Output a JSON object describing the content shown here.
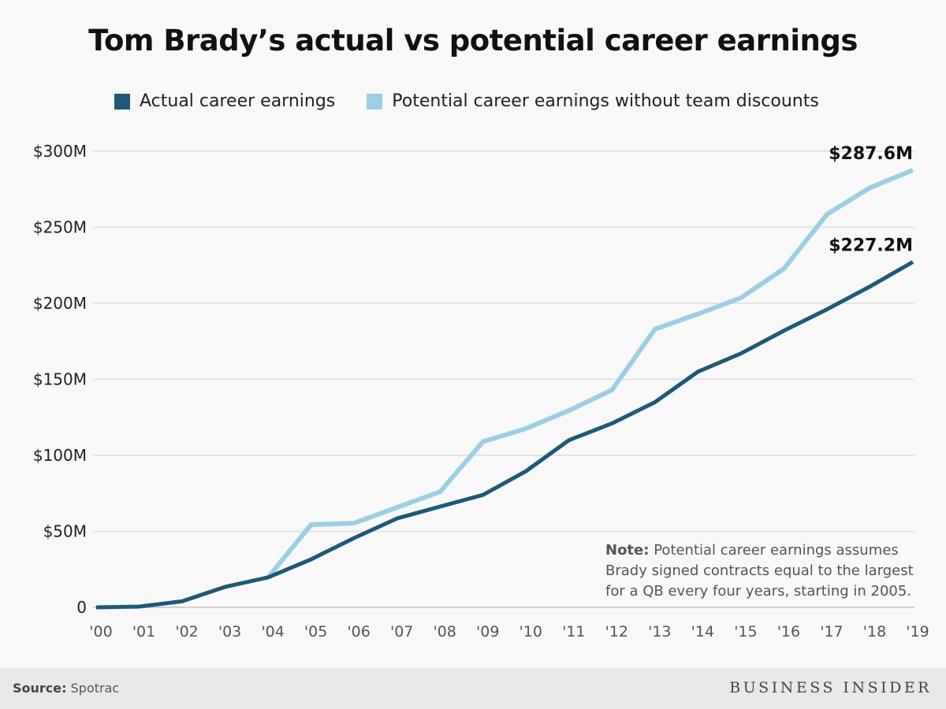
{
  "chart_data": {
    "type": "line",
    "title": "Tom Brady’s actual vs potential career earnings",
    "categories": [
      "'00",
      "'01",
      "'02",
      "'03",
      "'04",
      "'05",
      "'06",
      "'07",
      "'08",
      "'09",
      "'10",
      "'11",
      "'12",
      "'13",
      "'14",
      "'15",
      "'16",
      "'17",
      "'18",
      "'19"
    ],
    "series": [
      {
        "name": "Actual career earnings",
        "color": "#1d5a78",
        "values": [
          0,
          0.5,
          4,
          13.5,
          19.7,
          31.6,
          45.6,
          58.5,
          66.3,
          74,
          89.6,
          110,
          121,
          135,
          155,
          167,
          182,
          196,
          211,
          227.2
        ],
        "end_label": "$227.2M"
      },
      {
        "name": "Potential career earnings without team discounts",
        "color": "#9dcfe4",
        "values": [
          null,
          null,
          null,
          null,
          19.7,
          54.4,
          55.4,
          65.8,
          76,
          109,
          117.6,
          129.5,
          143,
          183,
          193,
          203.6,
          222.8,
          258.5,
          276,
          287.6
        ],
        "end_label": "$287.6M"
      }
    ],
    "yticks": [
      0,
      50,
      100,
      150,
      200,
      250,
      300
    ],
    "ytick_labels": [
      "0",
      "$50M",
      "$100M",
      "$150M",
      "$200M",
      "$250M",
      "$300M"
    ],
    "ylim": [
      0,
      300
    ],
    "grid": true,
    "legend_placement": "top"
  },
  "note": {
    "label": "Note:",
    "lines": [
      "Potential career earnings assumes",
      "Brady signed contracts equal to the largest",
      "for a QB every four years, starting in 2005."
    ]
  },
  "footer": {
    "source_label": "Source:",
    "source": "Spotrac",
    "brand": "BUSINESS INSIDER"
  }
}
